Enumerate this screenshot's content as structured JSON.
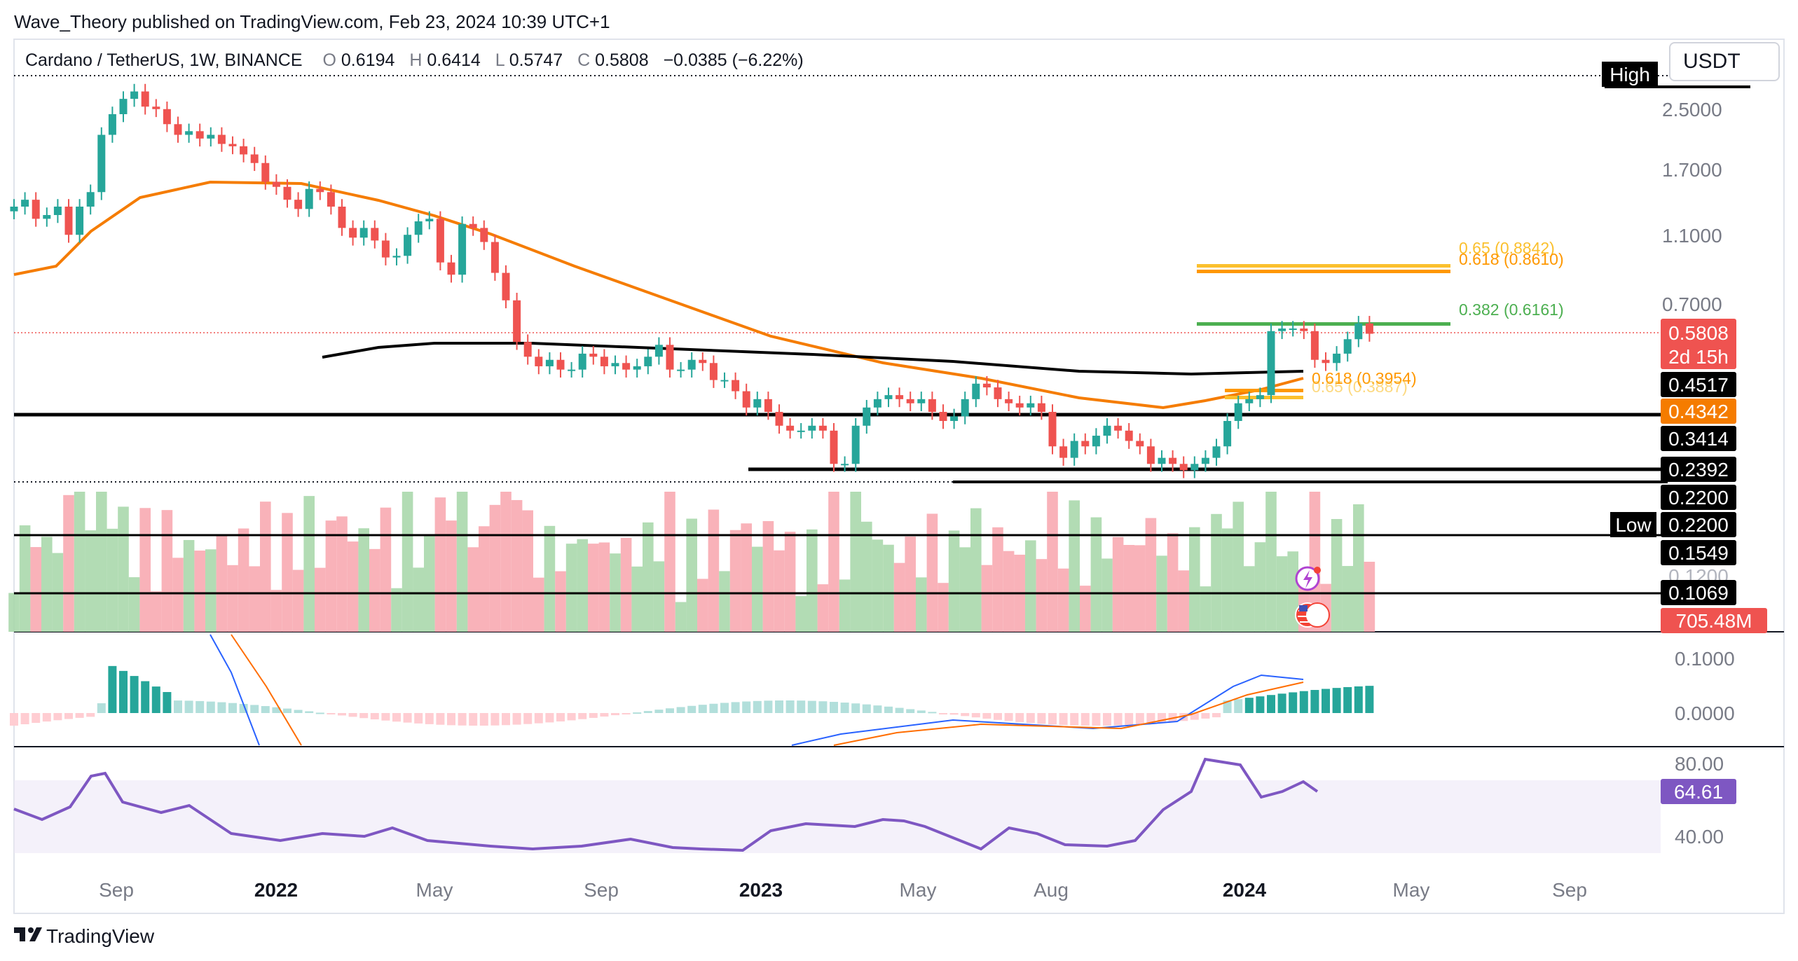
{
  "publisher_line": "Wave_Theory published on TradingView.com, Feb 23, 2024 10:39 UTC+1",
  "symbol": {
    "name": "Cardano / TetherUS, 1W, BINANCE",
    "o_label": "O",
    "o": "0.6194",
    "h_label": "H",
    "h": "0.6414",
    "l_label": "L",
    "l": "0.5747",
    "c_label": "C",
    "c": "0.5808",
    "change": "−0.0385 (−6.22%)"
  },
  "currency_button": "USDT",
  "footer_logo": "TradingView",
  "colors": {
    "up": "#26a69a",
    "down": "#ef5350",
    "ema_orange": "#f57c00",
    "sma_black": "#000000",
    "macd_line": "#2962ff",
    "signal_line": "#ff6d00",
    "rsi": "#7e57c2",
    "fib_green": "#4caf50",
    "fib_gold": "#fbc02d",
    "fib_orange": "#ff9800",
    "vol_up": "#a5d6a7",
    "vol_down": "#f8a5ad"
  },
  "price_scale_labels": [
    "2.5000",
    "1.7000",
    "1.1000",
    "0.7000"
  ],
  "price_tags": [
    {
      "text": "High",
      "kind": "label"
    },
    {
      "text": "0.5808",
      "kind": "last"
    },
    {
      "text": "2d 15h",
      "kind": "countdown"
    },
    {
      "text": "0.4517",
      "kind": "sma"
    },
    {
      "text": "0.4342",
      "kind": "ema"
    },
    {
      "text": "0.3414",
      "kind": "level"
    },
    {
      "text": "0.2392",
      "kind": "level"
    },
    {
      "text": "0.2200",
      "kind": "level"
    },
    {
      "text": "Low",
      "kind": "label"
    },
    {
      "text": "0.2200",
      "kind": "level"
    },
    {
      "text": "0.1549",
      "kind": "level"
    },
    {
      "text": "0.1200",
      "kind": "faded"
    },
    {
      "text": "0.1069",
      "kind": "level"
    },
    {
      "text": "705.48M",
      "kind": "volume"
    }
  ],
  "fib_labels": [
    {
      "text": "0.65 (0.8842)",
      "color": "#fbc02d"
    },
    {
      "text": "0.618 (0.8610)",
      "color": "#ff9800"
    },
    {
      "text": "0.382 (0.6161)",
      "color": "#4caf50"
    },
    {
      "text": "0.618 (0.3954)",
      "color": "#ff9800"
    },
    {
      "text": "0.65 (0.3887)",
      "color": "#fbc02d"
    }
  ],
  "macd_scale_labels": [
    "0.1000",
    "0.0000"
  ],
  "rsi_scale_labels": [
    "80.00",
    "40.00"
  ],
  "rsi_value": "64.61",
  "time_labels": [
    {
      "text": "Sep",
      "bold": false
    },
    {
      "text": "2022",
      "bold": true
    },
    {
      "text": "May",
      "bold": false
    },
    {
      "text": "Sep",
      "bold": false
    },
    {
      "text": "2023",
      "bold": true
    },
    {
      "text": "May",
      "bold": false
    },
    {
      "text": "Aug",
      "bold": false
    },
    {
      "text": "2024",
      "bold": true
    },
    {
      "text": "May",
      "bold": false
    },
    {
      "text": "Sep",
      "bold": false
    }
  ],
  "chart_data": {
    "type": "candlestick",
    "title": "Cardano / TetherUS, 1W, BINANCE",
    "y_scale": "log",
    "candle_closes_approx": [
      1.32,
      1.38,
      1.22,
      1.25,
      1.32,
      1.1,
      1.32,
      1.45,
      2.1,
      2.4,
      2.65,
      2.78,
      2.52,
      2.48,
      2.25,
      2.1,
      2.15,
      2.05,
      2.1,
      1.98,
      1.95,
      1.85,
      1.75,
      1.55,
      1.5,
      1.38,
      1.3,
      1.48,
      1.45,
      1.32,
      1.15,
      1.08,
      1.15,
      1.06,
      0.95,
      0.96,
      1.1,
      1.2,
      1.22,
      0.92,
      0.85,
      1.18,
      1.15,
      1.05,
      0.86,
      0.72,
      0.55,
      0.5,
      0.47,
      0.49,
      0.46,
      0.46,
      0.51,
      0.5,
      0.47,
      0.48,
      0.46,
      0.47,
      0.5,
      0.54,
      0.46,
      0.46,
      0.49,
      0.48,
      0.43,
      0.43,
      0.4,
      0.36,
      0.38,
      0.35,
      0.32,
      0.31,
      0.31,
      0.32,
      0.31,
      0.25,
      0.25,
      0.32,
      0.36,
      0.38,
      0.39,
      0.38,
      0.37,
      0.38,
      0.35,
      0.33,
      0.34,
      0.38,
      0.42,
      0.41,
      0.38,
      0.37,
      0.36,
      0.37,
      0.35,
      0.28,
      0.26,
      0.29,
      0.28,
      0.3,
      0.32,
      0.31,
      0.29,
      0.28,
      0.25,
      0.26,
      0.25,
      0.24,
      0.25,
      0.26,
      0.28,
      0.33,
      0.37,
      0.38,
      0.39,
      0.59,
      0.6,
      0.6,
      0.59,
      0.49,
      0.48,
      0.51,
      0.56,
      0.62,
      0.58
    ],
    "indicators": {
      "ema_orange_last": 0.4342,
      "sma_black_last": 0.4517,
      "fibonacci": [
        {
          "level": 0.65,
          "value": 0.8842
        },
        {
          "level": 0.618,
          "value": 0.861
        },
        {
          "level": 0.382,
          "value": 0.6161
        },
        {
          "level": 0.618,
          "value": 0.3954
        },
        {
          "level": 0.65,
          "value": 0.3887
        }
      ],
      "horizontal_levels": [
        0.3414,
        0.2392,
        0.22,
        0.1549,
        0.1069
      ],
      "volume_last": "705.48M",
      "rsi_last": 64.61
    }
  }
}
